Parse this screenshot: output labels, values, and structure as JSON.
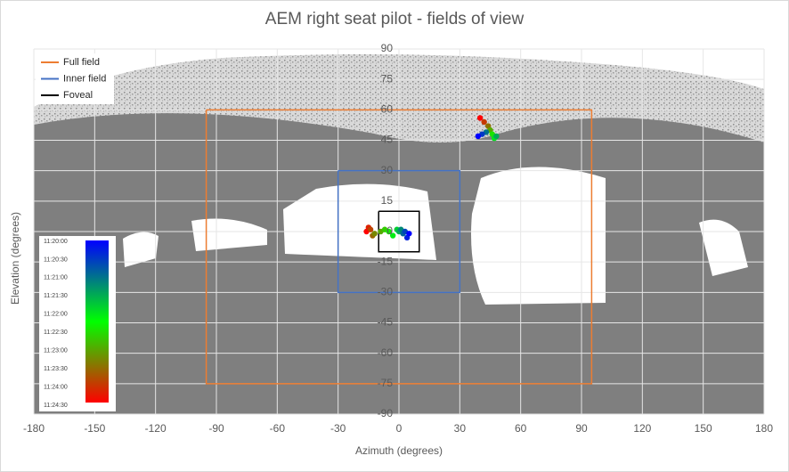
{
  "chart_data": {
    "type": "scatter",
    "title": "AEM right seat pilot - fields of view",
    "x_label": "Azimuth (degrees)",
    "y_label": "Elevation (degrees)",
    "xlim": [
      -180,
      180
    ],
    "ylim": [
      -90,
      90
    ],
    "xticks": [
      -180,
      -150,
      -120,
      -90,
      -60,
      -30,
      0,
      30,
      60,
      90,
      120,
      150,
      180
    ],
    "yticks": [
      -90,
      -75,
      -60,
      -45,
      -30,
      -15,
      0,
      15,
      30,
      45,
      60,
      75,
      90
    ],
    "grid": true,
    "legend": "upper left",
    "series": [
      {
        "name": "Full field",
        "color": "#ed7d31",
        "x": [
          -95,
          95,
          95,
          -95,
          -95
        ],
        "y": [
          60,
          60,
          -75,
          -75,
          60
        ]
      },
      {
        "name": "Inner field",
        "color": "#4472c4",
        "x": [
          -30,
          30,
          30,
          -30,
          -30
        ],
        "y": [
          30,
          30,
          -30,
          -30,
          30
        ]
      },
      {
        "name": "Foveal",
        "color": "#000000",
        "x": [
          -10,
          10,
          10,
          -10,
          -10
        ],
        "y": [
          10,
          10,
          -10,
          -10,
          10
        ]
      }
    ],
    "gaze": {
      "x": [
        -16,
        -15,
        -14,
        -13,
        -12,
        -9,
        -7,
        -5,
        -3,
        -1,
        0,
        1,
        2,
        3,
        4,
        5,
        40,
        42,
        44,
        45,
        46,
        47,
        48,
        43,
        41,
        39
      ],
      "y": [
        0,
        2,
        1,
        -2,
        -1,
        0,
        1,
        0,
        -2,
        1,
        0,
        1,
        -1,
        0,
        -3,
        -1,
        56,
        54,
        52,
        50,
        48,
        46,
        47,
        49,
        48,
        47
      ]
    },
    "colorbar": {
      "colors": [
        "#0000ff",
        "#00ff00",
        "#ff0000"
      ],
      "labels": [
        "11:20:00",
        "11:20:30",
        "11:21:00",
        "11:21:30",
        "11:22:00",
        "11:22:30",
        "11:23:00",
        "11:23:30",
        "11:24:00",
        "11:24:30"
      ]
    }
  }
}
